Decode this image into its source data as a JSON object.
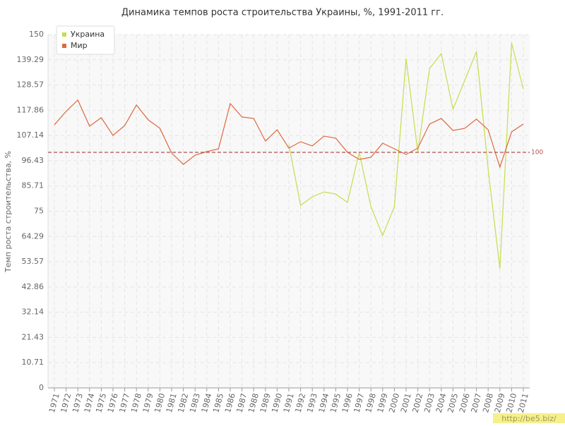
{
  "chart_data": {
    "type": "line",
    "title": "Динамика темпов роста строительства Украины, %, 1991-2011 гг.",
    "y_label": "Темп роста строительства, %",
    "categories": [
      "1971",
      "1972",
      "1973",
      "1974",
      "1975",
      "1976",
      "1977",
      "1978",
      "1979",
      "1980",
      "1981",
      "1982",
      "1983",
      "1984",
      "1985",
      "1986",
      "1987",
      "1988",
      "1989",
      "1990",
      "1991",
      "1992",
      "1993",
      "1994",
      "1995",
      "1996",
      "1997",
      "1998",
      "1999",
      "2000",
      "2001",
      "2002",
      "2003",
      "2004",
      "2005",
      "2006",
      "2007",
      "2008",
      "2009",
      "2010",
      "2011"
    ],
    "series": [
      {
        "name": "Украина",
        "color": "#c3de4e",
        "values": [
          null,
          null,
          null,
          null,
          null,
          null,
          null,
          null,
          null,
          null,
          null,
          null,
          null,
          null,
          null,
          null,
          null,
          null,
          null,
          null,
          103.3,
          77.5,
          81.1,
          83.2,
          82.3,
          78.7,
          100.0,
          76.9,
          64.7,
          76.9,
          139.8,
          100.0,
          135.6,
          141.9,
          118.3,
          130.5,
          142.8,
          92.8,
          50.6,
          146.4,
          126.9
        ]
      },
      {
        "name": "Мир",
        "color": "#e0673d",
        "values": [
          111.7,
          117.4,
          122.2,
          111.1,
          114.7,
          107.2,
          111.4,
          120.1,
          113.8,
          110.2,
          99.7,
          94.9,
          98.8,
          100.3,
          101.5,
          120.7,
          115.0,
          114.4,
          104.8,
          109.6,
          101.8,
          104.5,
          102.7,
          106.9,
          106.0,
          100.0,
          97.0,
          97.9,
          103.9,
          101.5,
          99.1,
          101.8,
          112.0,
          114.4,
          109.3,
          110.2,
          114.1,
          109.6,
          93.7,
          108.7,
          112.0
        ]
      }
    ],
    "ylim": [
      0,
      150
    ],
    "yticks": [
      0,
      10.71,
      21.43,
      32.14,
      42.86,
      53.57,
      64.29,
      75,
      85.71,
      96.43,
      107.14,
      117.86,
      128.57,
      139.29,
      150
    ],
    "reference_line": 100,
    "reference_color": "#b05050",
    "grid": true,
    "legend": "top-left",
    "watermark": "http://be5.biz/"
  }
}
